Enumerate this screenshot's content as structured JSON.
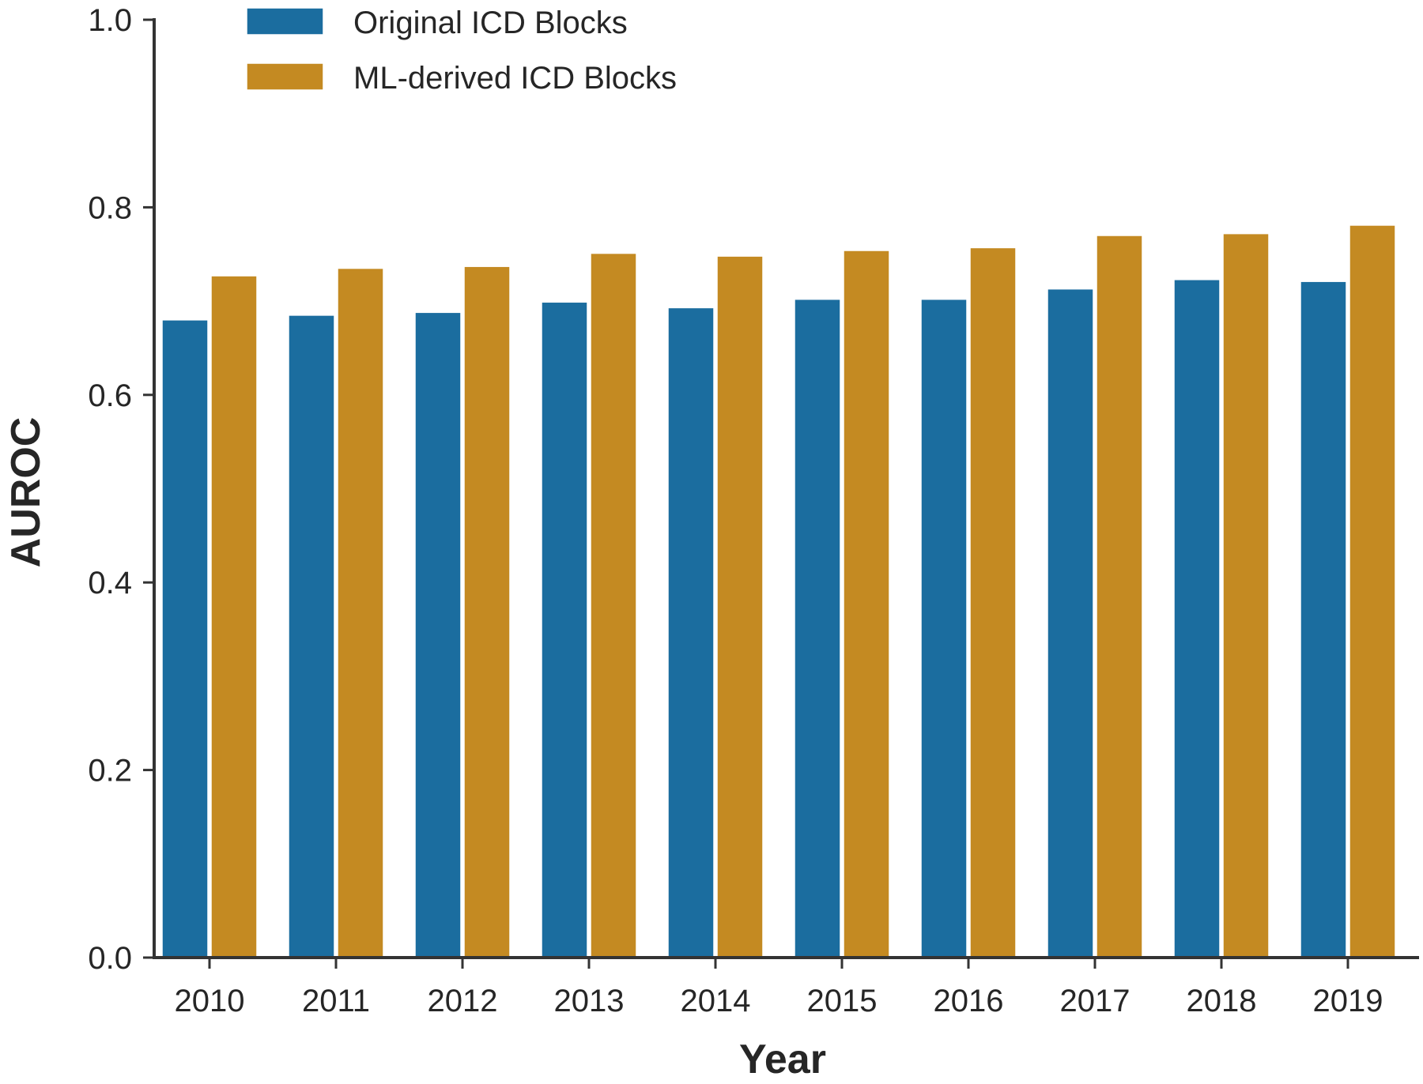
{
  "chart_data": {
    "type": "bar",
    "title": "",
    "xlabel": "Year",
    "ylabel": "AUROC",
    "ylim": [
      0.0,
      1.0
    ],
    "yticks": [
      "0.0",
      "0.2",
      "0.4",
      "0.6",
      "0.8",
      "1.0"
    ],
    "categories": [
      "2010",
      "2011",
      "2012",
      "2013",
      "2014",
      "2015",
      "2016",
      "2017",
      "2018",
      "2019"
    ],
    "series": [
      {
        "name": "Original ICD Blocks",
        "color": "#1b6d9f",
        "values": [
          0.68,
          0.685,
          0.688,
          0.699,
          0.693,
          0.702,
          0.702,
          0.713,
          0.723,
          0.721
        ]
      },
      {
        "name": "ML-derived ICD Blocks",
        "color": "#c48a22",
        "values": [
          0.727,
          0.735,
          0.737,
          0.751,
          0.748,
          0.754,
          0.757,
          0.77,
          0.772,
          0.781
        ]
      }
    ],
    "legend_position": "top-left",
    "grid": false
  }
}
